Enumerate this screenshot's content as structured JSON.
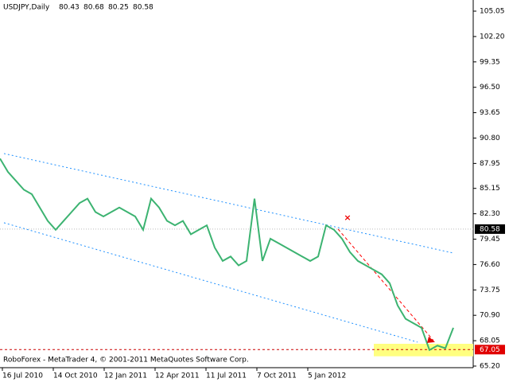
{
  "chart_data": {
    "type": "line",
    "title": "USDJPY,Daily",
    "ohlc": [
      80.43,
      80.68,
      80.25,
      80.58
    ],
    "footer": "RoboForex - MetaTrader 4, © 2001-2011 MetaQuotes Software Corp.",
    "x": [
      0,
      10,
      20,
      30,
      40,
      50,
      60,
      70,
      80,
      90,
      100,
      110,
      120,
      130,
      140,
      150,
      160,
      170,
      180,
      190,
      200,
      210,
      220,
      230,
      240,
      250,
      260,
      270,
      280,
      290,
      300,
      310,
      320,
      330,
      340,
      350,
      360,
      370,
      380,
      390,
      400,
      410,
      420,
      430,
      440,
      450,
      460,
      470,
      480,
      490,
      500,
      510,
      520,
      530,
      540,
      550,
      560,
      570
    ],
    "series": [
      {
        "color": "#3cb371",
        "values": [
          88.5,
          87.0,
          86.0,
          85.0,
          84.5,
          83.0,
          81.5,
          80.5,
          81.5,
          82.5,
          83.5,
          84.0,
          82.5,
          82.0,
          82.5,
          83.0,
          82.5,
          82.0,
          80.5,
          84.0,
          83.0,
          81.5,
          81.0,
          81.5,
          80.0,
          80.5,
          81.0,
          78.5,
          77.0,
          77.5,
          76.5,
          77.0,
          84.0,
          77.0,
          79.5,
          79.0,
          78.5,
          78.0,
          77.5,
          77.0,
          77.5,
          81.0,
          80.5,
          79.5,
          78.0,
          77.0,
          76.5,
          76.0,
          75.5,
          74.5,
          72.0,
          70.5,
          70.0,
          69.5,
          67.0,
          67.5,
          67.2,
          69.5
        ]
      }
    ],
    "channels": [
      {
        "color": "#1e90ff",
        "x": [
          5,
          570
        ],
        "y": [
          89.06,
          77.89
        ]
      },
      {
        "color": "#1e90ff",
        "x": [
          5,
          525
        ],
        "y": [
          81.29,
          67.89
        ]
      },
      {
        "color": "#ff0000",
        "x": [
          425,
          545
        ],
        "y": [
          80.58,
          68.07
        ]
      }
    ],
    "target_zone": [
      66.3,
      67.7
    ],
    "last_price": 80.58,
    "level": 67.05,
    "xlim": [
      0,
      595
    ],
    "xticks": [
      {
        "value": 3,
        "label": "16 Jul 2010"
      },
      {
        "value": 67,
        "label": "14 Oct 2010"
      },
      {
        "value": 131,
        "label": "12 Jan 2011"
      },
      {
        "value": 195,
        "label": "12 Apr 2011"
      },
      {
        "value": 259,
        "label": "11 Jul 2011"
      },
      {
        "value": 323,
        "label": "7 Oct 2011"
      },
      {
        "value": 387,
        "label": "5 Jan 2012"
      }
    ],
    "ylim": [
      65.02,
      106.3
    ],
    "yticks": [
      105.05,
      {
        "value": 102.2,
        "label": "102.20"
      },
      99.35,
      {
        "value": 96.5,
        "label": "96.50"
      },
      93.65,
      {
        "value": 90.8,
        "label": "90.80"
      },
      87.95,
      85.15,
      {
        "value": 82.3,
        "label": "82.30"
      },
      79.45,
      {
        "value": 76.6,
        "label": "76.60"
      },
      73.75,
      {
        "value": 70.9,
        "label": "70.90"
      },
      68.05,
      {
        "value": 65.2,
        "label": "65.20"
      }
    ]
  }
}
